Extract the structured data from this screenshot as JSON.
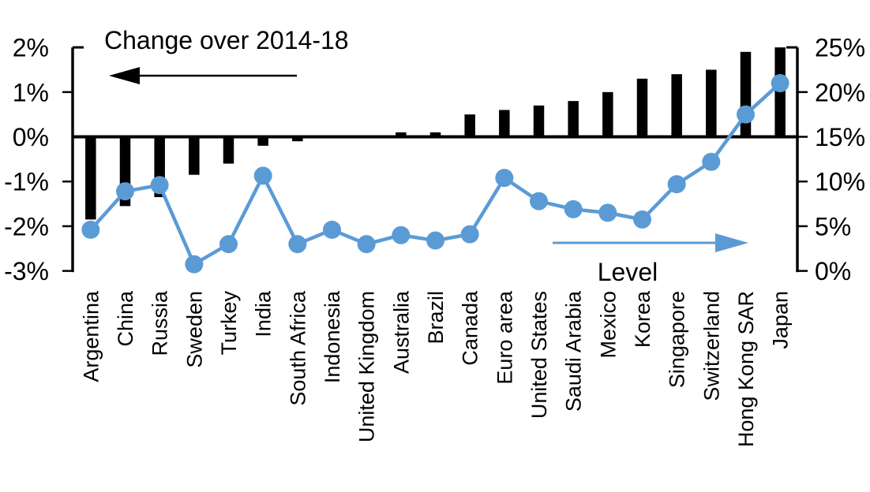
{
  "chart_data": {
    "type": "bar",
    "subtype": "dual-axis-bar-line",
    "title": "Change over 2014-18",
    "level_label": "Level",
    "categories": [
      "Argentina",
      "China",
      "Russia",
      "Sweden",
      "Turkey",
      "India",
      "South Africa",
      "Indonesia",
      "United Kingdom",
      "Australia",
      "Brazil",
      "Canada",
      "Euro area",
      "United States",
      "Saudi Arabia",
      "Mexico",
      "Korea",
      "Singapore",
      "Switzerland",
      "Hong Kong SAR",
      "Japan"
    ],
    "series": [
      {
        "name": "Change over 2014-18",
        "type": "bar",
        "axis": "left",
        "values": [
          -1.85,
          -1.55,
          -1.35,
          -0.85,
          -0.6,
          -0.2,
          -0.1,
          0.0,
          0.0,
          0.1,
          0.1,
          0.5,
          0.6,
          0.7,
          0.8,
          1.0,
          1.3,
          1.4,
          1.5,
          1.9,
          2.0
        ]
      },
      {
        "name": "Level",
        "type": "line",
        "axis": "right",
        "values": [
          4.6,
          8.9,
          9.6,
          0.75,
          3.0,
          10.65,
          3.0,
          4.6,
          3.0,
          4.0,
          3.4,
          4.1,
          10.4,
          7.8,
          6.9,
          6.5,
          5.75,
          9.7,
          12.2,
          17.5,
          21.0
        ]
      }
    ],
    "left_axis": {
      "tick_labels": [
        "2%",
        "1%",
        "0%",
        "-1%",
        "-2%",
        "-3%"
      ],
      "tick_values": [
        2,
        1,
        0,
        -1,
        -2,
        -3
      ],
      "ylim": [
        -3,
        2
      ]
    },
    "right_axis": {
      "tick_labels": [
        "25%",
        "20%",
        "15%",
        "10%",
        "5%",
        "0%"
      ],
      "tick_values": [
        25,
        20,
        15,
        10,
        5,
        0
      ],
      "ylim": [
        0,
        25
      ]
    },
    "annotations": [
      {
        "text": "Change over 2014-18",
        "arrow_direction": "left",
        "series": "bar"
      },
      {
        "text": "Level",
        "arrow_direction": "right",
        "series": "line"
      }
    ],
    "colors": {
      "bar": "#000000",
      "line": "#5B9BD5",
      "text": "#000000",
      "background": "#FFFFFF"
    },
    "grid": false,
    "legend_position": "in-plot annotations"
  }
}
